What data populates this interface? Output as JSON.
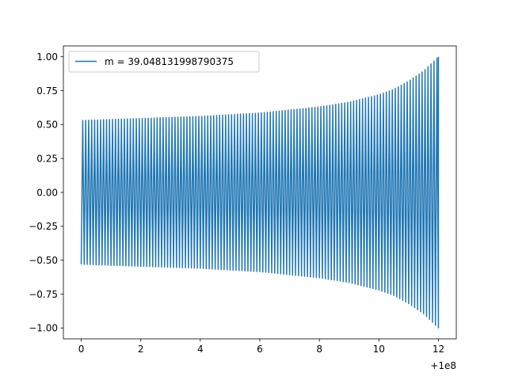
{
  "chart_data": {
    "type": "line",
    "title": "",
    "xlabel": "",
    "ylabel": "",
    "x_offset_label": "+1e8",
    "xlim": [
      -0.6,
      12.6
    ],
    "ylim": [
      -1.08,
      1.08
    ],
    "x_ticks": [
      0,
      2,
      4,
      6,
      8,
      10,
      12
    ],
    "x_tick_labels": [
      "0",
      "2",
      "4",
      "6",
      "8",
      "10",
      "12"
    ],
    "y_ticks": [
      1.0,
      0.75,
      0.5,
      0.25,
      0.0,
      -0.25,
      -0.5,
      -0.75,
      -1.0
    ],
    "y_tick_labels": [
      "1.00",
      "0.75",
      "0.50",
      "0.25",
      "0.00",
      "−0.25",
      "−0.50",
      "−0.75",
      "−1.00"
    ],
    "grid": false,
    "legend_position": "top-left",
    "series": [
      {
        "name": "m = 39.048131998790375",
        "color": "#1f77b4",
        "x_range": [
          0,
          12
        ],
        "cycles": 120,
        "envelope": {
          "x": [
            0,
            2,
            4,
            6,
            8,
            9,
            10,
            10.5,
            11,
            11.5,
            12
          ],
          "amplitude": [
            0.53,
            0.545,
            0.56,
            0.585,
            0.63,
            0.665,
            0.72,
            0.76,
            0.82,
            0.895,
            1.0
          ]
        },
        "start_value": -0.53,
        "end_value": 1.0
      }
    ]
  }
}
